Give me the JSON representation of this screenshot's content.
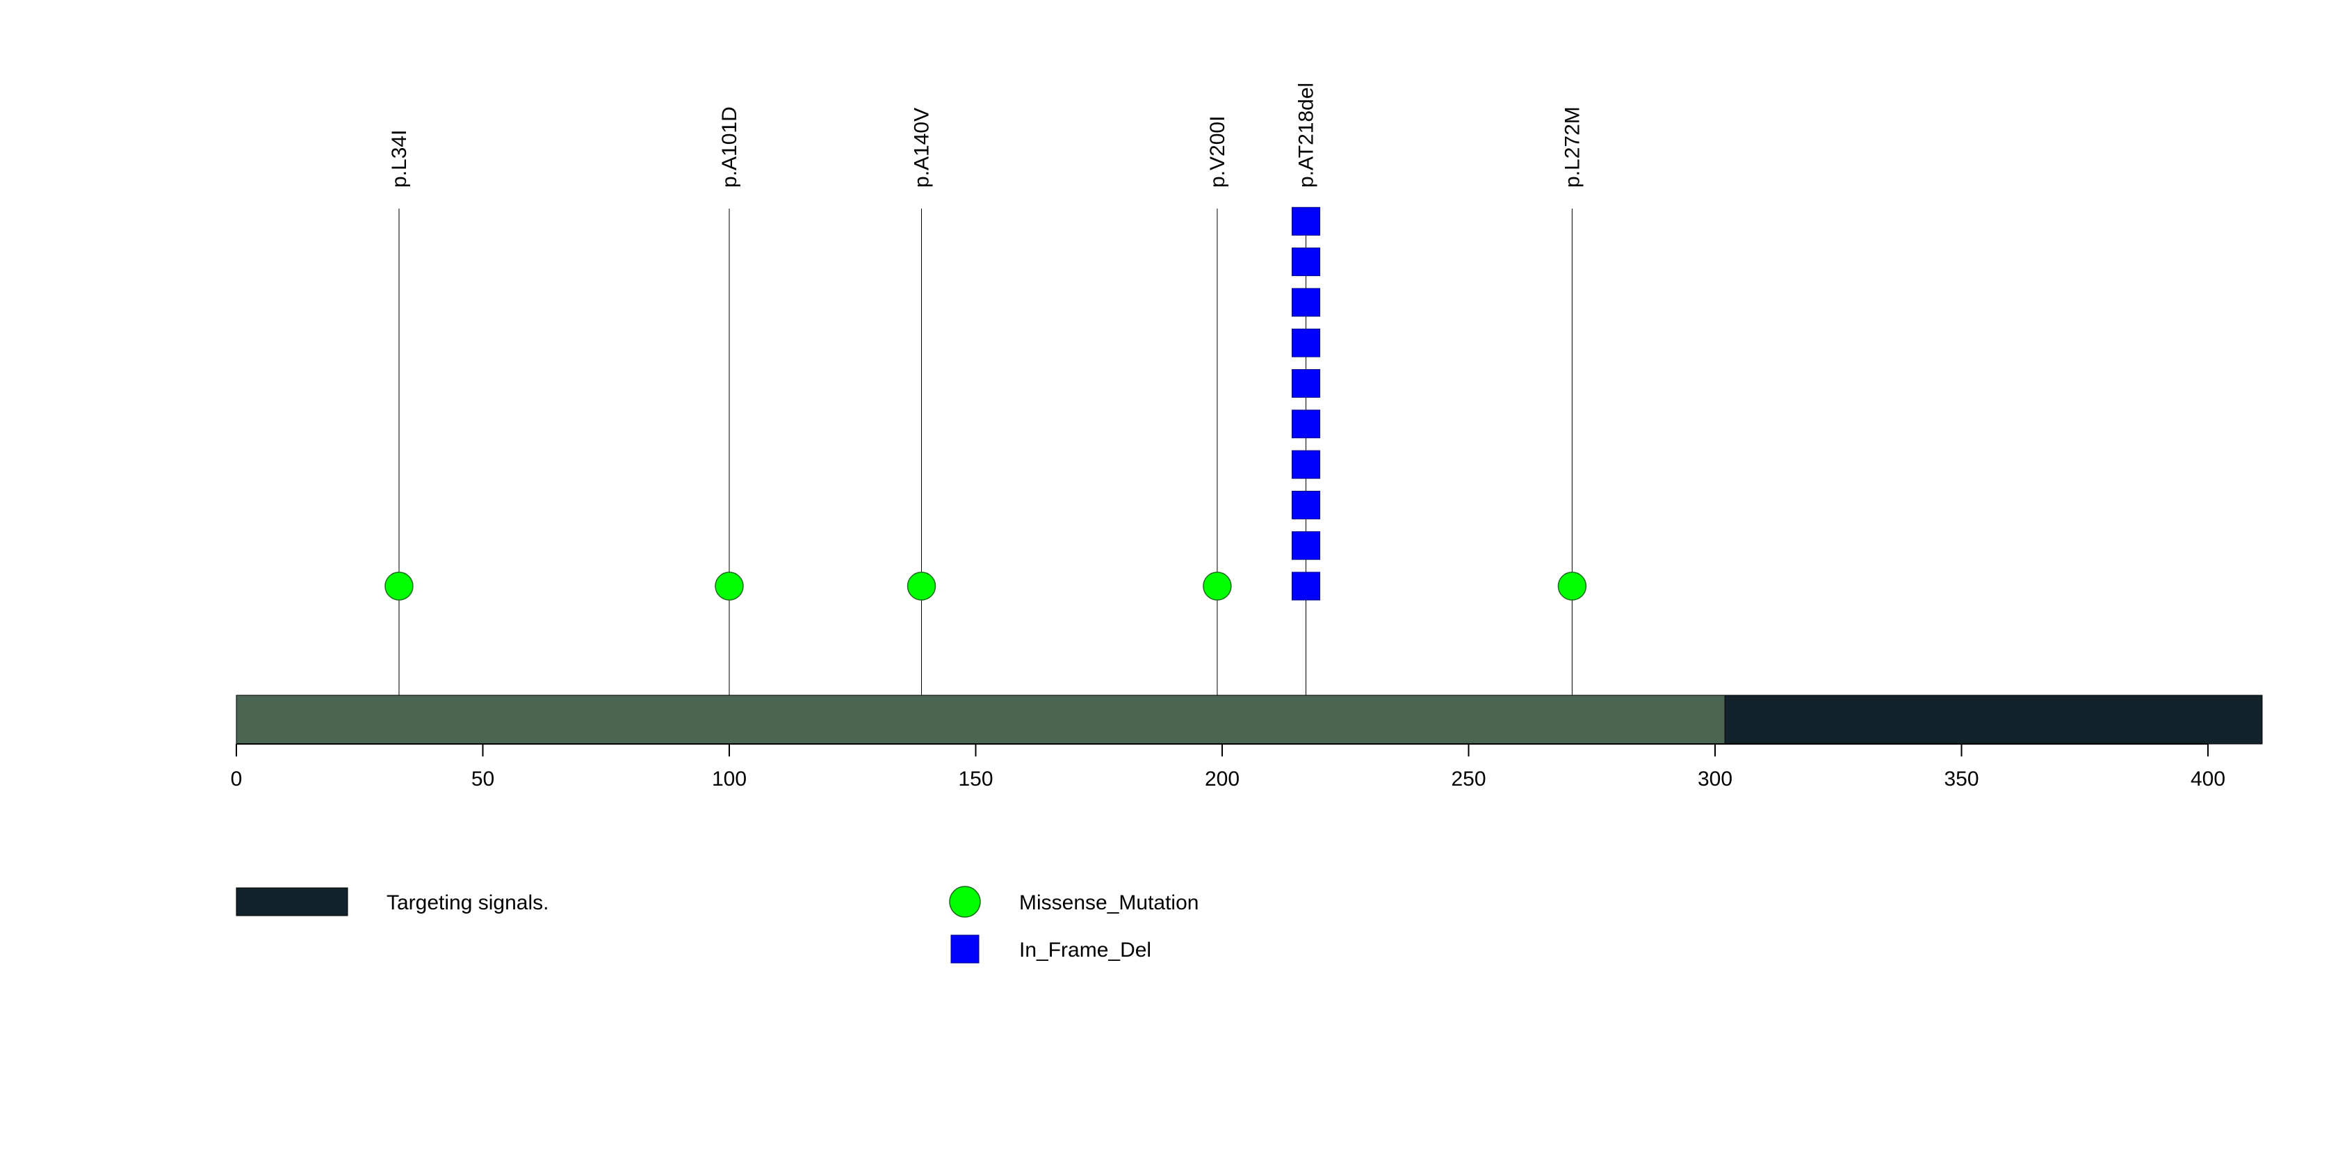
{
  "chart_data": {
    "type": "lollipop",
    "protein_length": 411,
    "xlim": [
      0,
      411
    ],
    "x_ticks": [
      0,
      50,
      100,
      150,
      200,
      250,
      300,
      350,
      400
    ],
    "domains": [
      {
        "name": "Targeting signals.",
        "start": 302,
        "end": 411,
        "color": "#13232b"
      }
    ],
    "backbone_color": "#4b6553",
    "mutations": [
      {
        "label": "p.L34I",
        "position": 33,
        "count": 1,
        "type": "Missense_Mutation"
      },
      {
        "label": "p.A101D",
        "position": 100,
        "count": 1,
        "type": "Missense_Mutation"
      },
      {
        "label": "p.A140V",
        "position": 139,
        "count": 1,
        "type": "Missense_Mutation"
      },
      {
        "label": "p.V200I",
        "position": 199,
        "count": 1,
        "type": "Missense_Mutation"
      },
      {
        "label": "p.AT218del",
        "position": 217,
        "count": 10,
        "type": "In_Frame_Del"
      },
      {
        "label": "p.L272M",
        "position": 271,
        "count": 1,
        "type": "Missense_Mutation"
      }
    ],
    "legend": {
      "domains": [
        {
          "label": "Targeting signals.",
          "color": "#13232b"
        }
      ],
      "mutation_types": [
        {
          "label": "Missense_Mutation",
          "shape": "circle",
          "color": "#00ff00"
        },
        {
          "label": "In_Frame_Del",
          "shape": "square",
          "color": "#0000ff"
        }
      ]
    }
  }
}
